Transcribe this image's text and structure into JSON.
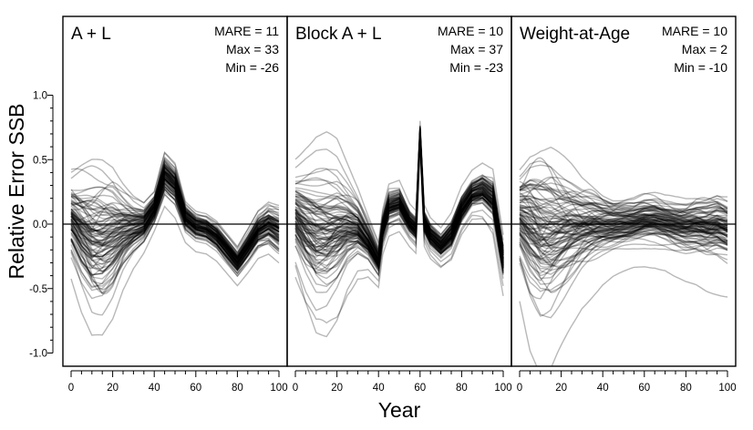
{
  "chart_data": {
    "type": "line",
    "ylabel": "Relative Error SSB",
    "xlabel": "Year",
    "xlim": [
      0,
      100
    ],
    "ylim": [
      -1.1,
      1.6
    ],
    "x_ticks": [
      0,
      20,
      40,
      60,
      80,
      100
    ],
    "y_ticks": [
      -1.0,
      -0.5,
      0.0,
      0.5,
      1.0
    ],
    "y_tick_labels": [
      "-1.0",
      "-0.5",
      "0.0",
      "0.5",
      "1.0"
    ],
    "reference_line": 0,
    "line_color": "#000000",
    "line_opacity": 0.28,
    "panels": [
      {
        "title": "A + L",
        "stats": [
          "MARE = 11",
          "Max = 33",
          "Min = -26"
        ],
        "n_lines": 100,
        "summary": {
          "x": [
            0,
            5,
            10,
            15,
            20,
            25,
            30,
            35,
            40,
            45,
            50,
            55,
            60,
            65,
            70,
            75,
            80,
            85,
            90,
            95,
            100
          ],
          "median": [
            0.05,
            -0.05,
            -0.12,
            -0.12,
            -0.08,
            -0.04,
            -0.02,
            0.0,
            0.12,
            0.38,
            0.3,
            0.05,
            -0.02,
            -0.04,
            -0.1,
            -0.2,
            -0.3,
            -0.18,
            -0.05,
            0.0,
            -0.05
          ],
          "spread": [
            0.18,
            0.25,
            0.3,
            0.3,
            0.26,
            0.18,
            0.12,
            0.08,
            0.06,
            0.08,
            0.08,
            0.06,
            0.06,
            0.06,
            0.06,
            0.06,
            0.06,
            0.07,
            0.08,
            0.09,
            0.1
          ]
        }
      },
      {
        "title": "Block A + L",
        "stats": [
          "MARE = 10",
          "Max = 37",
          "Min = -23"
        ],
        "n_lines": 100,
        "summary": {
          "x": [
            0,
            5,
            10,
            15,
            20,
            25,
            30,
            35,
            40,
            42,
            45,
            50,
            55,
            58,
            60,
            62,
            65,
            70,
            75,
            80,
            85,
            90,
            95,
            100
          ],
          "median": [
            0.05,
            -0.05,
            -0.12,
            -0.12,
            -0.08,
            -0.04,
            -0.05,
            -0.15,
            -0.3,
            -0.05,
            0.12,
            0.15,
            0.0,
            -0.05,
            0.7,
            0.0,
            -0.1,
            -0.18,
            -0.1,
            0.1,
            0.22,
            0.25,
            0.18,
            -0.3
          ],
          "spread": [
            0.18,
            0.25,
            0.3,
            0.3,
            0.26,
            0.18,
            0.12,
            0.08,
            0.06,
            0.06,
            0.07,
            0.07,
            0.06,
            0.06,
            0.04,
            0.06,
            0.06,
            0.06,
            0.07,
            0.07,
            0.07,
            0.08,
            0.09,
            0.08
          ]
        }
      },
      {
        "title": "Weight-at-Age",
        "stats": [
          "MARE = 10",
          "Max = 2",
          "Min = -10"
        ],
        "n_lines": 100,
        "summary": {
          "x": [
            0,
            5,
            10,
            15,
            20,
            25,
            30,
            35,
            40,
            45,
            50,
            55,
            60,
            65,
            70,
            75,
            80,
            85,
            90,
            95,
            100
          ],
          "median": [
            0.05,
            -0.02,
            -0.08,
            -0.08,
            -0.06,
            -0.04,
            -0.03,
            -0.02,
            -0.02,
            -0.02,
            -0.01,
            0.0,
            0.02,
            0.02,
            0.0,
            -0.02,
            -0.03,
            -0.02,
            -0.03,
            -0.02,
            -0.05
          ],
          "spread": [
            0.2,
            0.3,
            0.35,
            0.35,
            0.3,
            0.25,
            0.2,
            0.17,
            0.14,
            0.12,
            0.11,
            0.1,
            0.1,
            0.1,
            0.1,
            0.11,
            0.12,
            0.13,
            0.14,
            0.15,
            0.15
          ]
        }
      }
    ]
  }
}
